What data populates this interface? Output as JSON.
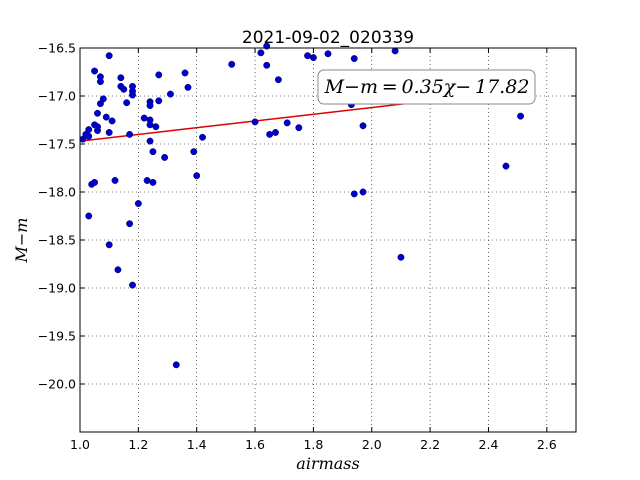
{
  "chart_data": {
    "type": "scatter",
    "title": "2021-09-02_020339",
    "xlabel": "airmass",
    "ylabel": "M−m",
    "xlim": [
      1.0,
      2.7
    ],
    "ylim": [
      -16.5,
      -20.5
    ],
    "y_inverted": true,
    "grid": true,
    "grid_style": "dotted",
    "xticks": [
      1.0,
      1.2,
      1.4,
      1.6,
      1.8,
      2.0,
      2.2,
      2.4,
      2.6
    ],
    "xtick_labels": [
      "1.0",
      "1.2",
      "1.4",
      "1.6",
      "1.8",
      "2.0",
      "2.2",
      "2.4",
      "2.6"
    ],
    "yticks": [
      -16.5,
      -17.0,
      -17.5,
      -18.0,
      -18.5,
      -19.0,
      -19.5,
      -20.0
    ],
    "ytick_labels": [
      "−16.5",
      "−17.0",
      "−17.5",
      "−18.0",
      "−18.5",
      "−19.0",
      "−19.5",
      "−20.0"
    ],
    "point_color": "#0000cc",
    "fit_color": "#dd0000",
    "fit": {
      "slope": 0.35,
      "intercept": -17.82,
      "x_range": [
        1.0,
        2.2
      ]
    },
    "annotation": "M−m = 0.35χ− 17.82",
    "points": [
      [
        1.01,
        -17.45
      ],
      [
        1.02,
        -17.4
      ],
      [
        1.03,
        -17.35
      ],
      [
        1.03,
        -17.42
      ],
      [
        1.03,
        -18.25
      ],
      [
        1.04,
        -17.92
      ],
      [
        1.05,
        -17.9
      ],
      [
        1.05,
        -16.74
      ],
      [
        1.05,
        -17.3
      ],
      [
        1.06,
        -17.18
      ],
      [
        1.06,
        -17.32
      ],
      [
        1.06,
        -17.36
      ],
      [
        1.07,
        -17.08
      ],
      [
        1.07,
        -16.85
      ],
      [
        1.07,
        -16.8
      ],
      [
        1.08,
        -17.03
      ],
      [
        1.09,
        -17.22
      ],
      [
        1.1,
        -16.58
      ],
      [
        1.1,
        -17.38
      ],
      [
        1.1,
        -18.55
      ],
      [
        1.11,
        -17.26
      ],
      [
        1.12,
        -17.88
      ],
      [
        1.13,
        -18.81
      ],
      [
        1.14,
        -16.9
      ],
      [
        1.14,
        -16.81
      ],
      [
        1.15,
        -16.93
      ],
      [
        1.16,
        -17.07
      ],
      [
        1.17,
        -17.4
      ],
      [
        1.17,
        -18.33
      ],
      [
        1.18,
        -16.9
      ],
      [
        1.18,
        -16.95
      ],
      [
        1.18,
        -16.99
      ],
      [
        1.18,
        -18.97
      ],
      [
        1.2,
        -18.12
      ],
      [
        1.22,
        -17.23
      ],
      [
        1.23,
        -17.88
      ],
      [
        1.24,
        -17.06
      ],
      [
        1.24,
        -17.1
      ],
      [
        1.24,
        -17.25
      ],
      [
        1.24,
        -17.3
      ],
      [
        1.24,
        -17.47
      ],
      [
        1.25,
        -17.58
      ],
      [
        1.25,
        -17.9
      ],
      [
        1.26,
        -17.32
      ],
      [
        1.27,
        -16.78
      ],
      [
        1.27,
        -17.05
      ],
      [
        1.29,
        -17.64
      ],
      [
        1.31,
        -16.98
      ],
      [
        1.33,
        -19.8
      ],
      [
        1.36,
        -16.76
      ],
      [
        1.37,
        -16.91
      ],
      [
        1.39,
        -17.58
      ],
      [
        1.4,
        -17.83
      ],
      [
        1.42,
        -17.43
      ],
      [
        1.52,
        -16.67
      ],
      [
        1.6,
        -17.27
      ],
      [
        1.62,
        -16.55
      ],
      [
        1.64,
        -16.48
      ],
      [
        1.64,
        -16.68
      ],
      [
        1.65,
        -17.4
      ],
      [
        1.67,
        -17.38
      ],
      [
        1.68,
        -16.83
      ],
      [
        1.71,
        -17.28
      ],
      [
        1.75,
        -17.33
      ],
      [
        1.78,
        -16.58
      ],
      [
        1.8,
        -16.6
      ],
      [
        1.85,
        -16.56
      ],
      [
        1.93,
        -17.09
      ],
      [
        1.94,
        -16.61
      ],
      [
        1.94,
        -18.02
      ],
      [
        1.97,
        -18.0
      ],
      [
        1.97,
        -17.31
      ],
      [
        2.08,
        -16.53
      ],
      [
        2.1,
        -18.68
      ],
      [
        2.46,
        -17.73
      ],
      [
        2.51,
        -17.21
      ]
    ]
  }
}
